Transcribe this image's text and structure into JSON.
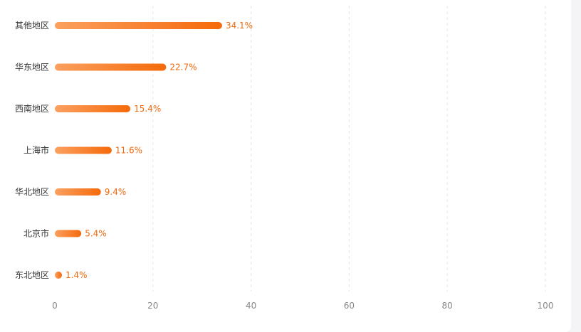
{
  "chart_data": {
    "type": "bar",
    "orientation": "horizontal",
    "categories": [
      "其他地区",
      "华东地区",
      "西南地区",
      "上海市",
      "华北地区",
      "北京市",
      "东北地区"
    ],
    "values": [
      34.1,
      22.7,
      15.4,
      11.6,
      9.4,
      5.4,
      1.4
    ],
    "value_labels": [
      "34.1%",
      "22.7%",
      "15.4%",
      "11.6%",
      "9.4%",
      "5.4%",
      "1.4%"
    ],
    "xlim": [
      0,
      100
    ],
    "xticks": [
      0,
      20,
      40,
      60,
      80,
      100
    ],
    "grid": "vertical-dashed",
    "legend": "none",
    "colors": {
      "bar_start": "#fba060",
      "bar_end": "#f56a0a",
      "value_text": "#f06a0f",
      "grid": "#e6e6e6"
    }
  }
}
